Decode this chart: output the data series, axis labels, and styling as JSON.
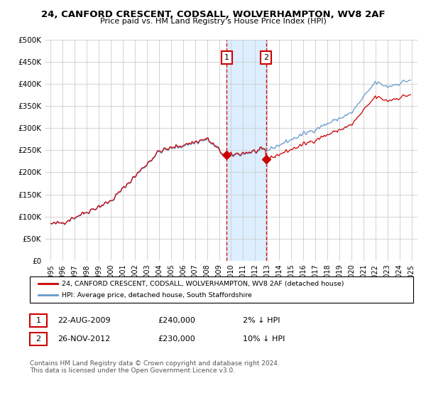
{
  "title": "24, CANFORD CRESCENT, CODSALL, WOLVERHAMPTON, WV8 2AF",
  "subtitle": "Price paid vs. HM Land Registry's House Price Index (HPI)",
  "legend_line1": "24, CANFORD CRESCENT, CODSALL, WOLVERHAMPTON, WV8 2AF (detached house)",
  "legend_line2": "HPI: Average price, detached house, South Staffordshire",
  "annotation1": {
    "num": "1",
    "date": "22-AUG-2009",
    "price": "£240,000",
    "pct": "2% ↓ HPI"
  },
  "annotation2": {
    "num": "2",
    "date": "26-NOV-2012",
    "price": "£230,000",
    "pct": "10% ↓ HPI"
  },
  "footnote": "Contains HM Land Registry data © Crown copyright and database right 2024.\nThis data is licensed under the Open Government Licence v3.0.",
  "hpi_color": "#6699cc",
  "sale_color": "#cc0000",
  "background_color": "#ffffff",
  "grid_color": "#cccccc",
  "shaded_region_color": "#ddeeff",
  "ylim": [
    0,
    500000
  ],
  "yticks": [
    0,
    50000,
    100000,
    150000,
    200000,
    250000,
    300000,
    350000,
    400000,
    450000,
    500000
  ],
  "sale1_year": 2009.63,
  "sale1_price": 240000,
  "sale2_year": 2012.9,
  "sale2_price": 230000,
  "xlim_left": 1994.5,
  "xlim_right": 2025.5
}
